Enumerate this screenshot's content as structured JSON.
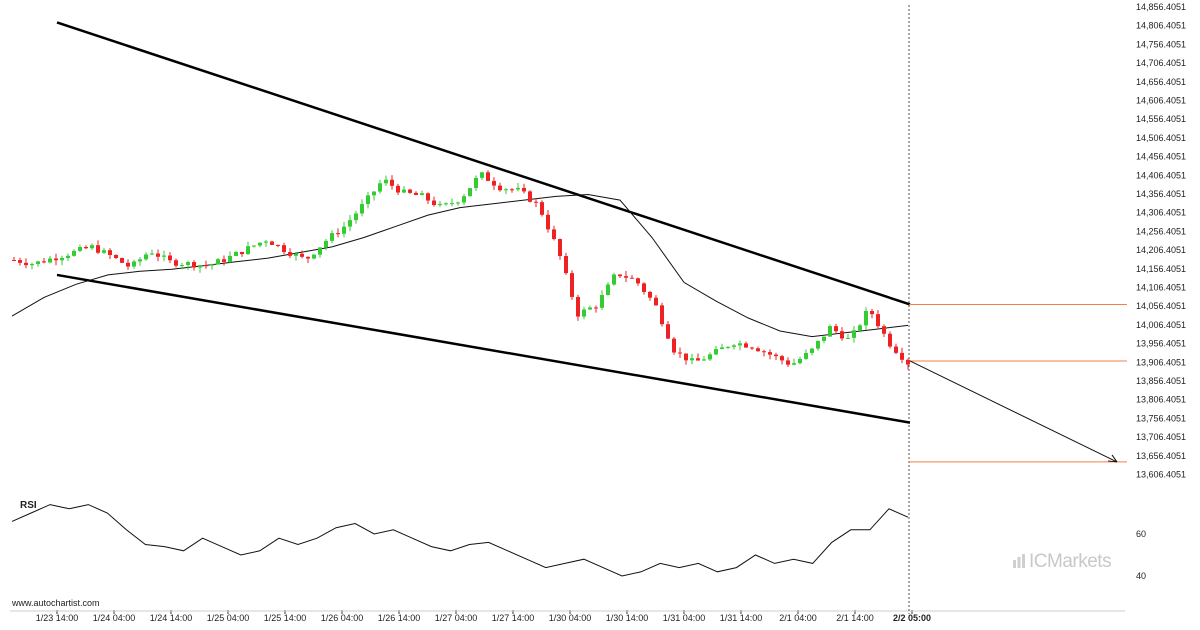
{
  "watermark": "www.autochartist.com",
  "brand": "ICMarkets",
  "rsi_label": "RSI",
  "colors": {
    "up": "#33cc33",
    "down": "#ee2222",
    "level": "#f08040",
    "line": "#000000"
  },
  "chart_data": {
    "type": "candlestick",
    "title": "",
    "y_ticks": [
      "14,856.4051",
      "14,806.4051",
      "14,756.4051",
      "14,706.4051",
      "14,656.4051",
      "14,606.4051",
      "14,556.4051",
      "14,506.4051",
      "14,456.4051",
      "14,406.4051",
      "14,356.4051",
      "14,306.4051",
      "14,256.4051",
      "14,206.4051",
      "14,156.4051",
      "14,106.4051",
      "14,056.4051",
      "14,006.4051",
      "13,956.4051",
      "13,906.4051",
      "13,856.4051",
      "13,806.4051",
      "13,756.4051",
      "13,706.4051",
      "13,656.4051",
      "13,606.4051"
    ],
    "ylim": [
      13590,
      14870
    ],
    "x_ticks": [
      "1/23 14:00",
      "1/24 04:00",
      "1/24 14:00",
      "1/25 04:00",
      "1/25 14:00",
      "1/26 04:00",
      "1/26 14:00",
      "1/27 04:00",
      "1/27 14:00",
      "1/30 04:00",
      "1/30 14:00",
      "1/31 04:00",
      "1/31 14:00",
      "2/1 04:00",
      "2/1 14:00",
      "2/2 05:00"
    ],
    "close_path": [
      14180,
      14170,
      14185,
      14200,
      14215,
      14190,
      14160,
      14205,
      14175,
      14170,
      14165,
      14185,
      14210,
      14235,
      14205,
      14180,
      14230,
      14270,
      14330,
      14395,
      14360,
      14350,
      14320,
      14345,
      14410,
      14375,
      14365,
      14325,
      14205,
      14035,
      14060,
      14145,
      14125,
      14060,
      13935,
      13905,
      13930,
      13960,
      13950,
      13925,
      13900,
      13935,
      14000,
      13965,
      14050,
      13960,
      13905
    ],
    "indicator_line": [
      14030,
      14080,
      14115,
      14140,
      14150,
      14155,
      14165,
      14175,
      14185,
      14200,
      14215,
      14240,
      14270,
      14300,
      14320,
      14330,
      14340,
      14350,
      14355,
      14340,
      14240,
      14120,
      14070,
      14025,
      13990,
      13975,
      13985,
      13995,
      14005
    ],
    "channel_upper": {
      "start": [
        "1/23 14:00",
        14815
      ],
      "end": [
        "2/2 05:00",
        14061
      ]
    },
    "channel_lower": {
      "start": [
        "1/23 14:00",
        14140
      ],
      "end": [
        "2/2 05:00",
        13745
      ]
    },
    "levels": [
      14061,
      13910,
      13640
    ],
    "projection": {
      "from": 13910,
      "to": 13640
    },
    "rsi": {
      "label": "RSI",
      "ticks": [
        "60",
        "40"
      ],
      "values": [
        66,
        70,
        74,
        72,
        74,
        70,
        62,
        55,
        54,
        52,
        58,
        54,
        50,
        52,
        58,
        55,
        58,
        63,
        65,
        60,
        62,
        58,
        54,
        52,
        55,
        56,
        52,
        48,
        44,
        46,
        48,
        44,
        40,
        42,
        46,
        44,
        46,
        42,
        44,
        50,
        46,
        48,
        46,
        56,
        62,
        62,
        72,
        68
      ]
    }
  }
}
